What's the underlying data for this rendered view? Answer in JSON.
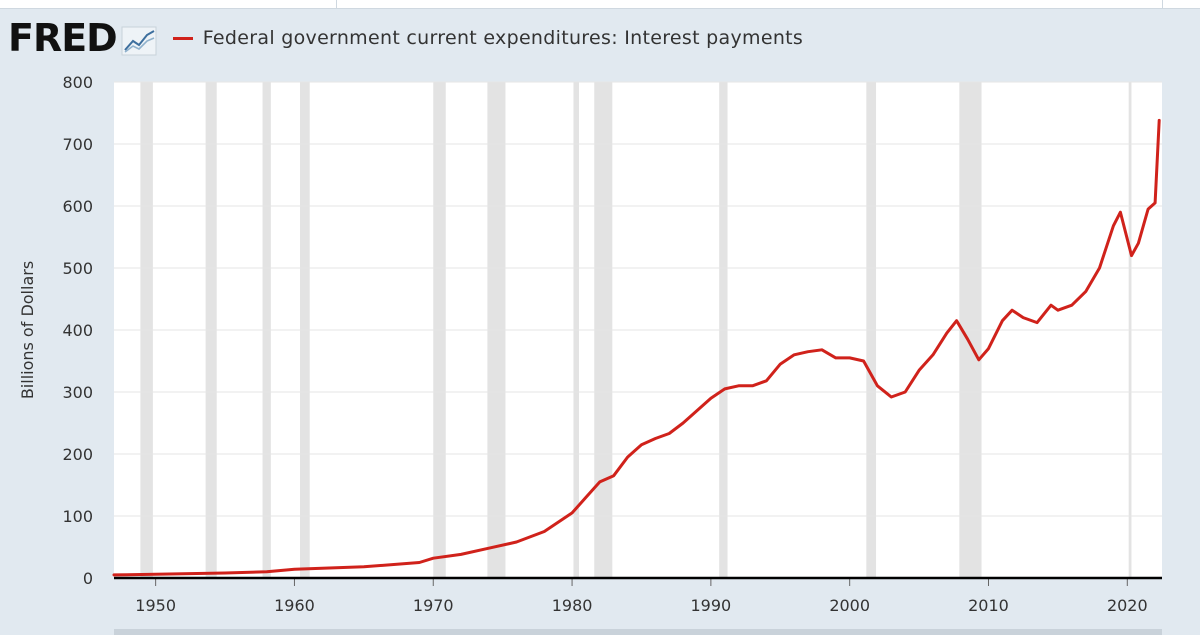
{
  "header": {
    "logo_text": "FRED",
    "logo_icon": "line-chart-icon"
  },
  "colors": {
    "series": "#d0221b",
    "plot_background": "#ffffff",
    "page_background": "#e1e9f0",
    "recession_band": "#e3e3e3",
    "gridline": "#e6e6e6",
    "axis": "#000000"
  },
  "chart_data": {
    "type": "line",
    "title": "",
    "xlabel": "",
    "ylabel": "Billions of Dollars",
    "xlim": [
      1947,
      2022.5
    ],
    "ylim": [
      0,
      800
    ],
    "grid": true,
    "legend": "top-left",
    "x_ticks": [
      "1950",
      "1960",
      "1970",
      "1980",
      "1990",
      "2000",
      "2010",
      "2020"
    ],
    "y_ticks": [
      "0",
      "100",
      "200",
      "300",
      "400",
      "500",
      "600",
      "700",
      "800"
    ],
    "recessions": [
      [
        1948.9,
        1949.8
      ],
      [
        1953.6,
        1954.4
      ],
      [
        1957.7,
        1958.3
      ],
      [
        1960.4,
        1961.1
      ],
      [
        1970.0,
        1970.9
      ],
      [
        1973.9,
        1975.2
      ],
      [
        1980.1,
        1980.5
      ],
      [
        1981.6,
        1982.9
      ],
      [
        1990.6,
        1991.2
      ],
      [
        2001.2,
        2001.9
      ],
      [
        2007.9,
        2009.5
      ],
      [
        2020.1,
        2020.3
      ]
    ],
    "series": [
      {
        "name": "Federal government current expenditures: Interest payments",
        "x": [
          1947,
          1950,
          1955,
          1958,
          1960,
          1965,
          1969,
          1970,
          1972,
          1974,
          1976,
          1978,
          1980,
          1981,
          1982,
          1983,
          1984,
          1985,
          1986,
          1987,
          1988,
          1989,
          1990,
          1991,
          1992,
          1993,
          1994,
          1995,
          1996,
          1997,
          1998,
          1999,
          2000,
          2001,
          2002,
          2003,
          2004,
          2005,
          2006,
          2007,
          2007.7,
          2008.5,
          2009.3,
          2010,
          2011,
          2011.7,
          2012.5,
          2013.5,
          2014.5,
          2015,
          2016,
          2017,
          2018,
          2019,
          2019.5,
          2020.3,
          2020.8,
          2021.5,
          2022,
          2022.3
        ],
        "values": [
          5,
          6,
          8,
          10,
          14,
          18,
          25,
          32,
          38,
          48,
          58,
          75,
          105,
          130,
          155,
          165,
          195,
          215,
          225,
          233,
          250,
          270,
          290,
          305,
          310,
          310,
          318,
          345,
          360,
          365,
          368,
          355,
          355,
          350,
          310,
          292,
          300,
          335,
          360,
          395,
          415,
          385,
          352,
          370,
          415,
          432,
          420,
          412,
          440,
          432,
          440,
          462,
          500,
          568,
          590,
          520,
          540,
          595,
          605,
          738
        ]
      }
    ]
  }
}
